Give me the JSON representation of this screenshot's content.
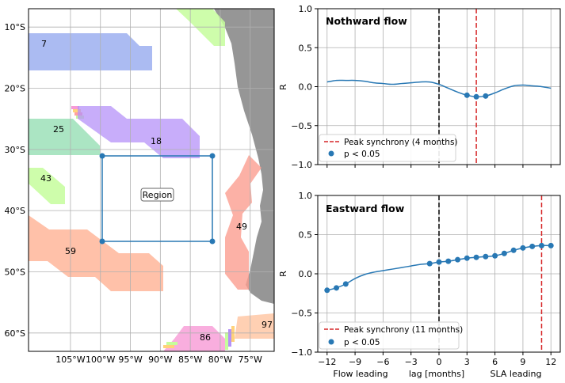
{
  "chart_data": [
    {
      "type": "map",
      "title": "",
      "lon_range": [
        -112,
        -71
      ],
      "lat_range": [
        -63,
        -7
      ],
      "xticks": [
        -105,
        -100,
        -95,
        -90,
        -85,
        -80,
        -75
      ],
      "xtick_labels": [
        "105°W",
        "100°W",
        "95°W",
        "90°W",
        "85°W",
        "80°W",
        "75°W"
      ],
      "yticks": [
        -10,
        -20,
        -30,
        -40,
        -50,
        -60
      ],
      "ytick_labels": [
        "10°S",
        "20°S",
        "30°S",
        "40°S",
        "50°S",
        "60°S"
      ],
      "grid": true,
      "region_box": {
        "label": "Region",
        "lon_min": -98,
        "lon_max": -80,
        "lat_min": -45,
        "lat_max": -31
      },
      "tracks": [
        {
          "id": "7",
          "color": "#8fa4ee"
        },
        {
          "id": "25",
          "color": "#8fdcaf"
        },
        {
          "id": "18",
          "color": "#b592f8"
        },
        {
          "id": "43",
          "color": "#c6fd9c"
        },
        {
          "id": "59",
          "color": "#ffb294"
        },
        {
          "id": "49",
          "color": "#fb9e90"
        },
        {
          "id": "86",
          "color": "#f79ad6"
        },
        {
          "id": "97",
          "color": "#ffc4a0"
        }
      ],
      "colors": {
        "land": "#969696",
        "box": "#2878b4"
      }
    },
    {
      "type": "line",
      "title": "Nothward flow",
      "ylabel": "R",
      "xlim": [
        -13,
        13
      ],
      "ylim": [
        -1,
        1
      ],
      "yticks": [
        -1.0,
        -0.5,
        0.0,
        0.5,
        1.0
      ],
      "ytick_labels": [
        "−1.0",
        "−0.5",
        "0.0",
        "0.5",
        "1.0"
      ],
      "x": [
        -12,
        -11,
        -10,
        -9,
        -8,
        -7,
        -6,
        -5,
        -4,
        -3,
        -2,
        -1,
        0,
        1,
        2,
        3,
        4,
        5,
        6,
        7,
        8,
        9,
        10,
        11,
        12
      ],
      "series": [
        {
          "values": [
            0.06,
            0.08,
            0.08,
            0.08,
            0.07,
            0.05,
            0.04,
            0.03,
            0.04,
            0.05,
            0.06,
            0.06,
            0.03,
            -0.02,
            -0.07,
            -0.11,
            -0.13,
            -0.12,
            -0.08,
            -0.03,
            0.01,
            0.02,
            0.01,
            0.0,
            -0.02
          ],
          "color": "#2878b4"
        }
      ],
      "significant_x": [
        3,
        4,
        5
      ],
      "peak_x": 4,
      "peak_label": "Peak synchrony (4 months)",
      "sig_label": "p < 0.05",
      "legend": "lower-left",
      "grid": true
    },
    {
      "type": "line",
      "title": "Eastward flow",
      "ylabel": "R",
      "xlabel": "lag [months]",
      "xlabel_left": "Flow leading",
      "xlabel_right": "SLA leading",
      "xlim": [
        -13,
        13
      ],
      "ylim": [
        -1,
        1
      ],
      "xticks": [
        -12,
        -9,
        -6,
        -3,
        0,
        3,
        6,
        9,
        12
      ],
      "xtick_labels": [
        "−12",
        "−9",
        "−6",
        "−3",
        "0",
        "3",
        "6",
        "9",
        "12"
      ],
      "yticks": [
        -1.0,
        -0.5,
        0.0,
        0.5,
        1.0
      ],
      "ytick_labels": [
        "−1.0",
        "−0.5",
        "0.0",
        "0.5",
        "1.0"
      ],
      "x": [
        -12,
        -11,
        -10,
        -9,
        -8,
        -7,
        -6,
        -5,
        -4,
        -3,
        -2,
        -1,
        0,
        1,
        2,
        3,
        4,
        5,
        6,
        7,
        8,
        9,
        10,
        11,
        12
      ],
      "series": [
        {
          "values": [
            -0.21,
            -0.18,
            -0.13,
            -0.06,
            -0.01,
            0.02,
            0.04,
            0.06,
            0.08,
            0.1,
            0.12,
            0.13,
            0.15,
            0.16,
            0.18,
            0.2,
            0.21,
            0.22,
            0.23,
            0.26,
            0.3,
            0.33,
            0.35,
            0.36,
            0.36
          ],
          "color": "#2878b4"
        }
      ],
      "significant_x": [
        -12,
        -11,
        -10,
        -1,
        0,
        1,
        2,
        3,
        4,
        5,
        6,
        7,
        8,
        9,
        10,
        11,
        12
      ],
      "peak_x": 11,
      "peak_label": "Peak synchrony (11 months)",
      "sig_label": "p < 0.05",
      "legend": "lower-left",
      "grid": true
    }
  ]
}
